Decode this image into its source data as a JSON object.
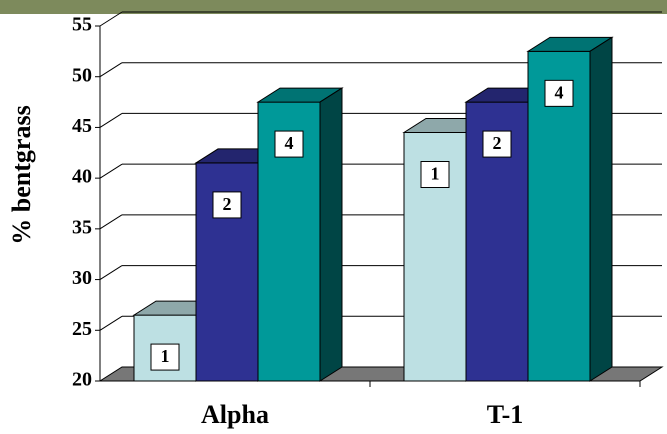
{
  "chart_data": {
    "type": "bar3d",
    "y_label": "% bentgrass",
    "categories": [
      "Alpha",
      "T-1"
    ],
    "series": [
      {
        "name": "1",
        "color": "#bde0e3",
        "values": [
          26.5,
          44.5
        ]
      },
      {
        "name": "2",
        "color": "#2e3192",
        "values": [
          41.5,
          47.5
        ]
      },
      {
        "name": "4",
        "color": "#009999",
        "values": [
          47.5,
          52.5
        ]
      }
    ],
    "ylim": [
      20,
      55
    ],
    "yticks": [
      20,
      25,
      30,
      35,
      40,
      45,
      50,
      55
    ],
    "grid": true
  }
}
